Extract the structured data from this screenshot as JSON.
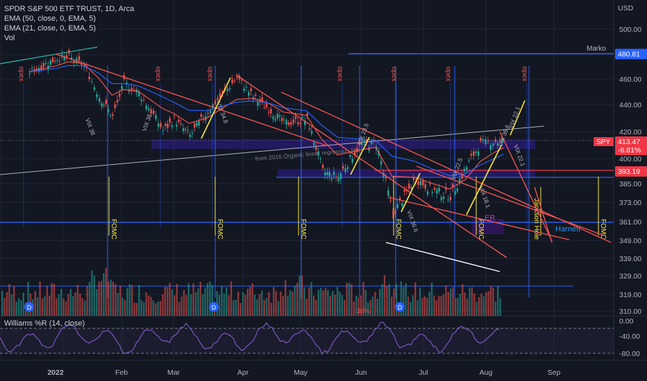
{
  "legend": {
    "symbol_line": "SPDR S&P 500 ETF TRUST, 1D, Arca",
    "ema50": "EMA (50, close, 0, EMA, 5)",
    "ema21": "EMA (21, close, 0, EMA, 5)",
    "vol": "Vol"
  },
  "oscillator_title": "Williams %R (14, close)",
  "currency": "USD",
  "colors": {
    "background": "#131722",
    "up": "#26a69a",
    "down": "#ef5350",
    "ema_fast": "#ef5350",
    "ema_slow": "#2962ff",
    "yellow": "#ffeb3b",
    "blue_line": "#2962ff",
    "oscillator": "#7e57c2"
  },
  "badges": {
    "marko_label": "Marko",
    "marko_price": "480.81",
    "spy_ticker": "SPY",
    "spy_price": "413.47",
    "spy_change": "-8.81%",
    "red_level": "393.19"
  },
  "annotations": {
    "opex": "opex",
    "fomc": "FOMC",
    "jackson_hole": "Jackson Hole",
    "harnett": "Harnett",
    "er": "ER",
    "vix_labels": [
      "VIX 38",
      "VIX 38",
      "VIX 34.8",
      "VIX 23.5",
      "VIX 36.6",
      "VIX 22.5",
      "VIX 22.1",
      "VIX 36.6",
      "VIX 18.1",
      "VIX 22.1"
    ],
    "regression_text": "from 2016 Organic linear regression line",
    "vol_marker": "36%",
    "dividend": "D"
  },
  "chart_data": {
    "type": "candlestick",
    "title": "SPDR S&P 500 ETF TRUST, 1D, Arca",
    "y_axis_ticks": [
      500,
      480,
      460,
      440,
      420,
      400,
      385,
      373,
      361,
      349,
      339,
      329,
      319,
      310
    ],
    "x_axis_labels": [
      "2022",
      "Feb",
      "Mar",
      "Apr",
      "May",
      "Jun",
      "Jul",
      "Aug",
      "Sep"
    ],
    "price_series": [
      {
        "date": "2021-12-15",
        "close": 466
      },
      {
        "date": "2021-12-29",
        "close": 477
      },
      {
        "date": "2022-01-04",
        "close": 478
      },
      {
        "date": "2022-01-12",
        "close": 471
      },
      {
        "date": "2022-01-20",
        "close": 446
      },
      {
        "date": "2022-01-27",
        "close": 431
      },
      {
        "date": "2022-02-02",
        "close": 457
      },
      {
        "date": "2022-02-10",
        "close": 449
      },
      {
        "date": "2022-02-23",
        "close": 421
      },
      {
        "date": "2022-03-01",
        "close": 429
      },
      {
        "date": "2022-03-08",
        "close": 417
      },
      {
        "date": "2022-03-16",
        "close": 435
      },
      {
        "date": "2022-03-29",
        "close": 461
      },
      {
        "date": "2022-04-06",
        "close": 446
      },
      {
        "date": "2022-04-14",
        "close": 437
      },
      {
        "date": "2022-04-22",
        "close": 426
      },
      {
        "date": "2022-05-04",
        "close": 429
      },
      {
        "date": "2022-05-12",
        "close": 392
      },
      {
        "date": "2022-05-20",
        "close": 389
      },
      {
        "date": "2022-06-01",
        "close": 411
      },
      {
        "date": "2022-06-08",
        "close": 411
      },
      {
        "date": "2022-06-16",
        "close": 366
      },
      {
        "date": "2022-06-27",
        "close": 388
      },
      {
        "date": "2022-07-05",
        "close": 381
      },
      {
        "date": "2022-07-14",
        "close": 377
      },
      {
        "date": "2022-07-22",
        "close": 395
      },
      {
        "date": "2022-07-29",
        "close": 411
      },
      {
        "date": "2022-08-05",
        "close": 413
      },
      {
        "date": "2022-08-09",
        "close": 412
      }
    ],
    "williams_r": {
      "name": "Williams %R (14, close)",
      "ticks": [
        "0.00",
        "-40.00",
        "-80.00"
      ],
      "levels": [
        -20,
        -80
      ]
    },
    "horizontal_levels": [
      480.81,
      393.19,
      413.47,
      388
    ],
    "last_price": 413.47,
    "last_change": "-8.81%"
  }
}
